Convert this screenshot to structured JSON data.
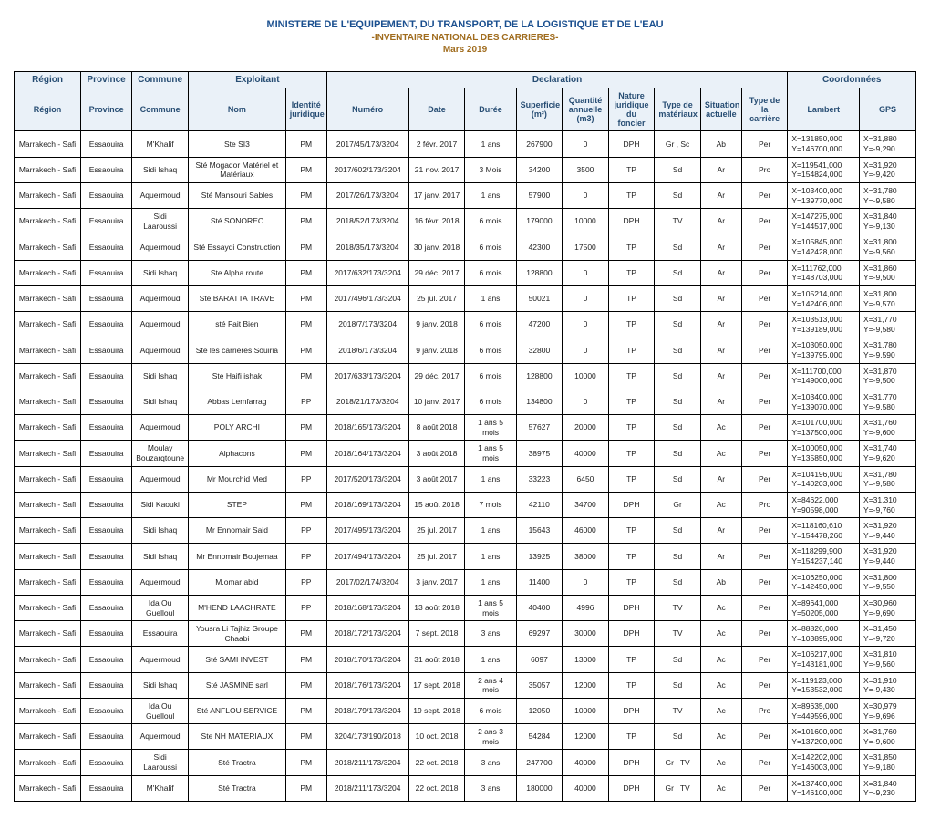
{
  "header": {
    "line1": "MINISTERE DE L'EQUIPEMENT, DU TRANSPORT, DE LA LOGISTIQUE ET DE L'EAU",
    "line2": "-INVENTAIRE NATIONAL DES CARRIERES-",
    "line3": "Mars 2019"
  },
  "colors": {
    "title_main": "#1a4f8f",
    "title_sub": "#a06c1e",
    "th_bg": "#eaf1f8",
    "th_fg": "#274d73",
    "border": "#000000"
  },
  "columns_top": {
    "region": "Région",
    "province": "Province",
    "commune": "Commune",
    "exploitant": "Exploitant",
    "declaration": "Declaration",
    "coordonnees": "Coordonnées"
  },
  "columns_sub": {
    "region": "Région",
    "province": "Province",
    "commune": "Commune",
    "nom": "Nom",
    "identite": "Identité juridique",
    "numero": "Numéro",
    "date": "Date",
    "duree": "Durée",
    "superficie": "Superficie (m²)",
    "quantite": "Quantité annuelle (m3)",
    "nature": "Nature juridique du foncier",
    "materiaux": "Type de matériaux",
    "situation": "Situation actuelle",
    "carriere": "Type de la carrière",
    "lambert": "Lambert",
    "gps": "GPS"
  },
  "rows": [
    {
      "region": "Marrakech - Safi",
      "province": "Essaouira",
      "commune": "M'Khalif",
      "nom": "Ste SI3",
      "ident": "PM",
      "num": "2017/45/173/3204",
      "date": "2 févr. 2017",
      "duree": "1 ans",
      "sup": "267900",
      "qte": "0",
      "nat": "DPH",
      "mat": "Gr , Sc",
      "sit": "Ab",
      "typ": "Per",
      "lam": "X=131850,000\nY=146700,000",
      "gps": "X=31,880\nY=-9,290"
    },
    {
      "region": "Marrakech - Safi",
      "province": "Essaouira",
      "commune": "Sidi Ishaq",
      "nom": "Sté Mogador Matériel et Matériaux",
      "ident": "PM",
      "num": "2017/602/173/3204",
      "date": "21 nov. 2017",
      "duree": "3 Mois",
      "sup": "34200",
      "qte": "3500",
      "nat": "TP",
      "mat": "Sd",
      "sit": "Ar",
      "typ": "Pro",
      "lam": "X=119541,000\nY=154824,000",
      "gps": "X=31,920\nY=-9,420"
    },
    {
      "region": "Marrakech - Safi",
      "province": "Essaouira",
      "commune": "Aquermoud",
      "nom": "Sté Mansouri Sables",
      "ident": "PM",
      "num": "2017/26/173/3204",
      "date": "17 janv. 2017",
      "duree": "1 ans",
      "sup": "57900",
      "qte": "0",
      "nat": "TP",
      "mat": "Sd",
      "sit": "Ar",
      "typ": "Per",
      "lam": "X=103400,000\nY=139770,000",
      "gps": "X=31,780\nY=-9,580"
    },
    {
      "region": "Marrakech - Safi",
      "province": "Essaouira",
      "commune": "Sidi Laaroussi",
      "nom": "Sté SONOREC",
      "ident": "PM",
      "num": "2018/52/173/3204",
      "date": "16 févr. 2018",
      "duree": "6 mois",
      "sup": "179000",
      "qte": "10000",
      "nat": "DPH",
      "mat": "TV",
      "sit": "Ar",
      "typ": "Per",
      "lam": "X=147275,000\nY=144517,000",
      "gps": "X=31,840\nY=-9,130"
    },
    {
      "region": "Marrakech - Safi",
      "province": "Essaouira",
      "commune": "Aquermoud",
      "nom": "Sté Essaydi Construction",
      "ident": "PM",
      "num": "2018/35/173/3204",
      "date": "30 janv. 2018",
      "duree": "6 mois",
      "sup": "42300",
      "qte": "17500",
      "nat": "TP",
      "mat": "Sd",
      "sit": "Ar",
      "typ": "Per",
      "lam": "X=105845,000\nY=142428,000",
      "gps": "X=31,800\nY=-9,560"
    },
    {
      "region": "Marrakech - Safi",
      "province": "Essaouira",
      "commune": "Sidi Ishaq",
      "nom": "Ste Alpha route",
      "ident": "PM",
      "num": "2017/632/173/3204",
      "date": "29 déc. 2017",
      "duree": "6 mois",
      "sup": "128800",
      "qte": "0",
      "nat": "TP",
      "mat": "Sd",
      "sit": "Ar",
      "typ": "Per",
      "lam": "X=111762,000\nY=148703,000",
      "gps": "X=31,860\nY=-9,500"
    },
    {
      "region": "Marrakech - Safi",
      "province": "Essaouira",
      "commune": "Aquermoud",
      "nom": "Ste BARATTA TRAVE",
      "ident": "PM",
      "num": "2017/496/173/3204",
      "date": "25 jul. 2017",
      "duree": "1 ans",
      "sup": "50021",
      "qte": "0",
      "nat": "TP",
      "mat": "Sd",
      "sit": "Ar",
      "typ": "Per",
      "lam": "X=105214,000\nY=142406,000",
      "gps": "X=31,800\nY=-9,570"
    },
    {
      "region": "Marrakech - Safi",
      "province": "Essaouira",
      "commune": "Aquermoud",
      "nom": "sté Fait Bien",
      "ident": "PM",
      "num": "2018/7/173/3204",
      "date": "9 janv. 2018",
      "duree": "6 mois",
      "sup": "47200",
      "qte": "0",
      "nat": "TP",
      "mat": "Sd",
      "sit": "Ar",
      "typ": "Per",
      "lam": "X=103513,000\nY=139189,000",
      "gps": "X=31,770\nY=-9,580"
    },
    {
      "region": "Marrakech - Safi",
      "province": "Essaouira",
      "commune": "Aquermoud",
      "nom": "Sté les carrières Souiria",
      "ident": "PM",
      "num": "2018/6/173/3204",
      "date": "9 janv. 2018",
      "duree": "6 mois",
      "sup": "32800",
      "qte": "0",
      "nat": "TP",
      "mat": "Sd",
      "sit": "Ar",
      "typ": "Per",
      "lam": "X=103050,000\nY=139795,000",
      "gps": "X=31,780\nY=-9,590"
    },
    {
      "region": "Marrakech - Safi",
      "province": "Essaouira",
      "commune": "Sidi Ishaq",
      "nom": "Ste Haifi ishak",
      "ident": "PM",
      "num": "2017/633/173/3204",
      "date": "29 déc. 2017",
      "duree": "6 mois",
      "sup": "128800",
      "qte": "10000",
      "nat": "TP",
      "mat": "Sd",
      "sit": "Ar",
      "typ": "Per",
      "lam": "X=111700,000\nY=149000,000",
      "gps": "X=31,870\nY=-9,500"
    },
    {
      "region": "Marrakech - Safi",
      "province": "Essaouira",
      "commune": "Sidi Ishaq",
      "nom": "Abbas Lemfarrag",
      "ident": "PP",
      "num": "2018/21/173/3204",
      "date": "10 janv. 2017",
      "duree": "6 mois",
      "sup": "134800",
      "qte": "0",
      "nat": "TP",
      "mat": "Sd",
      "sit": "Ar",
      "typ": "Per",
      "lam": "X=103400,000\nY=139070,000",
      "gps": "X=31,770\nY=-9,580"
    },
    {
      "region": "Marrakech - Safi",
      "province": "Essaouira",
      "commune": "Aquermoud",
      "nom": "POLY ARCHI",
      "ident": "PM",
      "num": "2018/165/173/3204",
      "date": "8 août 2018",
      "duree": "1 ans 5 mois",
      "sup": "57627",
      "qte": "20000",
      "nat": "TP",
      "mat": "Sd",
      "sit": "Ac",
      "typ": "Per",
      "lam": "X=101700,000\nY=137500,000",
      "gps": "X=31,760\nY=-9,600"
    },
    {
      "region": "Marrakech - Safi",
      "province": "Essaouira",
      "commune": "Moulay Bouzarqtoune",
      "nom": "Alphacons",
      "ident": "PM",
      "num": "2018/164/173/3204",
      "date": "3 août 2018",
      "duree": "1 ans 5 mois",
      "sup": "38975",
      "qte": "40000",
      "nat": "TP",
      "mat": "Sd",
      "sit": "Ac",
      "typ": "Per",
      "lam": "X=100050,000\nY=135850,000",
      "gps": "X=31,740\nY=-9,620"
    },
    {
      "region": "Marrakech - Safi",
      "province": "Essaouira",
      "commune": "Aquermoud",
      "nom": "Mr Mourchid Med",
      "ident": "PP",
      "num": "2017/520/173/3204",
      "date": "3 août 2017",
      "duree": "1 ans",
      "sup": "33223",
      "qte": "6450",
      "nat": "TP",
      "mat": "Sd",
      "sit": "Ar",
      "typ": "Per",
      "lam": "X=104196,000\nY=140203,000",
      "gps": "X=31,780\nY=-9,580"
    },
    {
      "region": "Marrakech - Safi",
      "province": "Essaouira",
      "commune": "Sidi Kaouki",
      "nom": "STEP",
      "ident": "PM",
      "num": "2018/169/173/3204",
      "date": "15 août 2018",
      "duree": "7 mois",
      "sup": "42110",
      "qte": "34700",
      "nat": "DPH",
      "mat": "Gr",
      "sit": "Ac",
      "typ": "Pro",
      "lam": "X=84622,000\nY=90598,000",
      "gps": "X=31,310\nY=-9,760"
    },
    {
      "region": "Marrakech - Safi",
      "province": "Essaouira",
      "commune": "Sidi Ishaq",
      "nom": "Mr Ennomair Said",
      "ident": "PP",
      "num": "2017/495/173/3204",
      "date": "25 jul. 2017",
      "duree": "1 ans",
      "sup": "15643",
      "qte": "46000",
      "nat": "TP",
      "mat": "Sd",
      "sit": "Ar",
      "typ": "Per",
      "lam": "X=118160,610\nY=154478,260",
      "gps": "X=31,920\nY=-9,440"
    },
    {
      "region": "Marrakech - Safi",
      "province": "Essaouira",
      "commune": "Sidi Ishaq",
      "nom": "Mr Ennomair Boujemaa",
      "ident": "PP",
      "num": "2017/494/173/3204",
      "date": "25 jul. 2017",
      "duree": "1 ans",
      "sup": "13925",
      "qte": "38000",
      "nat": "TP",
      "mat": "Sd",
      "sit": "Ar",
      "typ": "Per",
      "lam": "X=118299,900\nY=154237,140",
      "gps": "X=31,920\nY=-9,440"
    },
    {
      "region": "Marrakech - Safi",
      "province": "Essaouira",
      "commune": "Aquermoud",
      "nom": "M.omar abid",
      "ident": "PP",
      "num": "2017/02/174/3204",
      "date": "3 janv. 2017",
      "duree": "1 ans",
      "sup": "11400",
      "qte": "0",
      "nat": "TP",
      "mat": "Sd",
      "sit": "Ab",
      "typ": "Per",
      "lam": "X=106250,000\nY=142450,000",
      "gps": "X=31,800\nY=-9,550"
    },
    {
      "region": "Marrakech - Safi",
      "province": "Essaouira",
      "commune": "Ida Ou Guelloul",
      "nom": "M'HEND LAACHRATE",
      "ident": "PP",
      "num": "2018/168/173/3204",
      "date": "13 août 2018",
      "duree": "1 ans 5 mois",
      "sup": "40400",
      "qte": "4996",
      "nat": "DPH",
      "mat": "TV",
      "sit": "Ac",
      "typ": "Per",
      "lam": "X=89641,000\nY=50205,000",
      "gps": "X=30,960\nY=-9,690"
    },
    {
      "region": "Marrakech - Safi",
      "province": "Essaouira",
      "commune": "Essaouira",
      "nom": "Yousra Li Tajhiz Groupe Chaabi",
      "ident": "PM",
      "num": "2018/172/173/3204",
      "date": "7 sept. 2018",
      "duree": "3 ans",
      "sup": "69297",
      "qte": "30000",
      "nat": "DPH",
      "mat": "TV",
      "sit": "Ac",
      "typ": "Per",
      "lam": "X=88826,000\nY=103895,000",
      "gps": "X=31,450\nY=-9,720"
    },
    {
      "region": "Marrakech - Safi",
      "province": "Essaouira",
      "commune": "Aquermoud",
      "nom": "Sté SAMI INVEST",
      "ident": "PM",
      "num": "2018/170/173/3204",
      "date": "31 août 2018",
      "duree": "1 ans",
      "sup": "6097",
      "qte": "13000",
      "nat": "TP",
      "mat": "Sd",
      "sit": "Ac",
      "typ": "Per",
      "lam": "X=106217,000\nY=143181,000",
      "gps": "X=31,810\nY=-9,560"
    },
    {
      "region": "Marrakech - Safi",
      "province": "Essaouira",
      "commune": "Sidi Ishaq",
      "nom": "Sté JASMINE sarl",
      "ident": "PM",
      "num": "2018/176/173/3204",
      "date": "17 sept. 2018",
      "duree": "2 ans 4 mois",
      "sup": "35057",
      "qte": "12000",
      "nat": "TP",
      "mat": "Sd",
      "sit": "Ac",
      "typ": "Per",
      "lam": "X=119123,000\nY=153532,000",
      "gps": "X=31,910\nY=-9,430"
    },
    {
      "region": "Marrakech - Safi",
      "province": "Essaouira",
      "commune": "Ida Ou Guelloul",
      "nom": "Sté ANFLOU SERVICE",
      "ident": "PM",
      "num": "2018/179/173/3204",
      "date": "19 sept. 2018",
      "duree": "6 mois",
      "sup": "12050",
      "qte": "10000",
      "nat": "DPH",
      "mat": "TV",
      "sit": "Ac",
      "typ": "Pro",
      "lam": "X=89635,000\nY=449596,000",
      "gps": "X=30,979\nY=-9,696"
    },
    {
      "region": "Marrakech - Safi",
      "province": "Essaouira",
      "commune": "Aquermoud",
      "nom": "Ste NH MATERIAUX",
      "ident": "PM",
      "num": "3204/173/190/2018",
      "date": "10 oct. 2018",
      "duree": "2 ans 3 mois",
      "sup": "54284",
      "qte": "12000",
      "nat": "TP",
      "mat": "Sd",
      "sit": "Ac",
      "typ": "Per",
      "lam": "X=101600,000\nY=137200,000",
      "gps": "X=31,760\nY=-9,600"
    },
    {
      "region": "Marrakech - Safi",
      "province": "Essaouira",
      "commune": "Sidi Laaroussi",
      "nom": "Sté Tractra",
      "ident": "PM",
      "num": "2018/211/173/3204",
      "date": "22 oct. 2018",
      "duree": "3 ans",
      "sup": "247700",
      "qte": "40000",
      "nat": "DPH",
      "mat": "Gr , TV",
      "sit": "Ac",
      "typ": "Per",
      "lam": "X=142202,000\nY=146003,000",
      "gps": "X=31,850\nY=-9,180"
    },
    {
      "region": "Marrakech - Safi",
      "province": "Essaouira",
      "commune": "M'Khalif",
      "nom": "Sté Tractra",
      "ident": "PM",
      "num": "2018/211/173/3204",
      "date": "22 oct. 2018",
      "duree": "3 ans",
      "sup": "180000",
      "qte": "40000",
      "nat": "DPH",
      "mat": "Gr , TV",
      "sit": "Ac",
      "typ": "Per",
      "lam": "X=137400,000\nY=146100,000",
      "gps": "X=31,840\nY=-9,230"
    }
  ]
}
